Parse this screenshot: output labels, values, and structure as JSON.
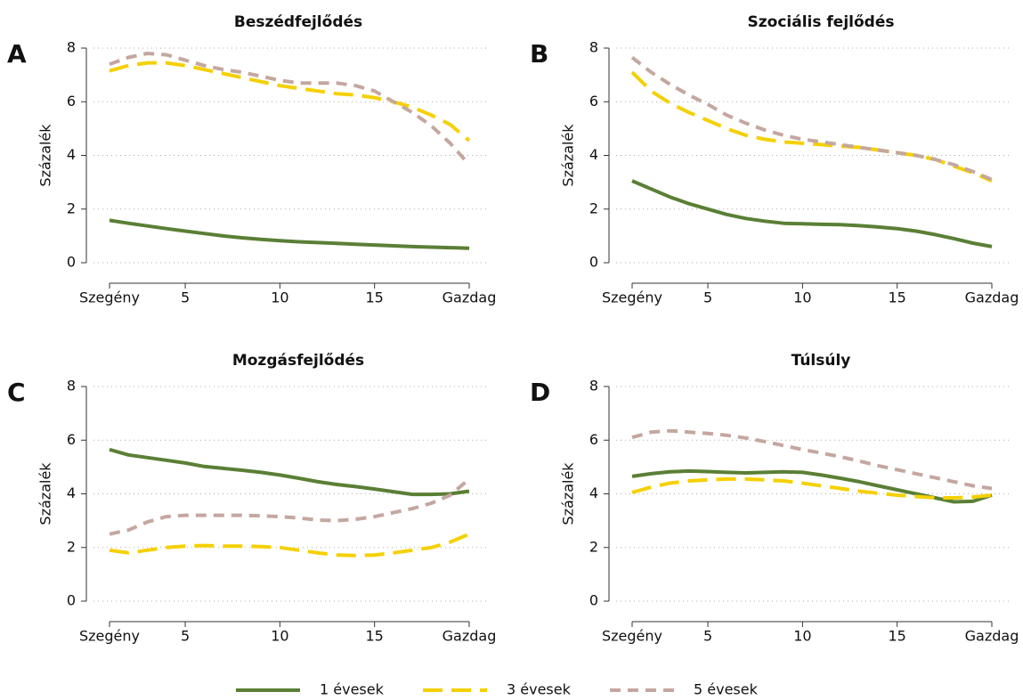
{
  "chart_data": [
    {
      "type": "line",
      "label": "A",
      "title": "Beszédfejlődés",
      "ylabel": "Százalék",
      "x": [
        1,
        2,
        3,
        4,
        5,
        6,
        7,
        8,
        9,
        10,
        11,
        12,
        13,
        14,
        15,
        16,
        17,
        18,
        19,
        20
      ],
      "xlim": [
        1,
        20
      ],
      "xticks": [
        {
          "value": 1,
          "label": "Szegény"
        },
        5,
        10,
        15,
        {
          "value": 20,
          "label": "Gazdag"
        }
      ],
      "ylim": [
        0,
        8
      ],
      "yticks": [
        0,
        2,
        4,
        6,
        8
      ],
      "grid": true,
      "series": [
        {
          "name": "1 évesek",
          "color": "#5a7f35",
          "values": [
            1.58,
            1.47,
            1.37,
            1.27,
            1.18,
            1.09,
            1.0,
            0.93,
            0.87,
            0.82,
            0.78,
            0.75,
            0.72,
            0.69,
            0.66,
            0.63,
            0.6,
            0.58,
            0.56,
            0.54
          ]
        },
        {
          "name": "3 évesek",
          "color": "#f5d000",
          "values": [
            7.15,
            7.35,
            7.45,
            7.45,
            7.35,
            7.2,
            7.05,
            6.9,
            6.75,
            6.6,
            6.5,
            6.4,
            6.3,
            6.25,
            6.15,
            6.0,
            5.8,
            5.5,
            5.15,
            4.55
          ]
        },
        {
          "name": "5 évesek",
          "color": "#c4a7a0",
          "values": [
            7.4,
            7.65,
            7.8,
            7.75,
            7.55,
            7.35,
            7.2,
            7.1,
            6.95,
            6.8,
            6.7,
            6.7,
            6.7,
            6.6,
            6.4,
            6.0,
            5.6,
            5.1,
            4.45,
            3.65
          ]
        }
      ]
    },
    {
      "type": "line",
      "label": "B",
      "title": "Szociális fejlődés",
      "ylabel": "Százalék",
      "x": [
        1,
        2,
        3,
        4,
        5,
        6,
        7,
        8,
        9,
        10,
        11,
        12,
        13,
        14,
        15,
        16,
        17,
        18,
        19,
        20
      ],
      "xlim": [
        1,
        20
      ],
      "xticks": [
        {
          "value": 1,
          "label": "Szegény"
        },
        5,
        10,
        15,
        {
          "value": 20,
          "label": "Gazdag"
        }
      ],
      "ylim": [
        0,
        8
      ],
      "yticks": [
        0,
        2,
        4,
        6,
        8
      ],
      "grid": true,
      "series": [
        {
          "name": "1 évesek",
          "color": "#5a7f35",
          "values": [
            3.05,
            2.75,
            2.45,
            2.2,
            2.0,
            1.8,
            1.65,
            1.55,
            1.47,
            1.45,
            1.43,
            1.42,
            1.38,
            1.33,
            1.27,
            1.18,
            1.05,
            0.9,
            0.73,
            0.6
          ]
        },
        {
          "name": "3 évesek",
          "color": "#f5d000",
          "values": [
            7.1,
            6.4,
            5.95,
            5.6,
            5.3,
            5.0,
            4.75,
            4.6,
            4.5,
            4.45,
            4.4,
            4.35,
            4.3,
            4.2,
            4.1,
            4.0,
            3.85,
            3.6,
            3.35,
            3.05
          ]
        },
        {
          "name": "5 évesek",
          "color": "#c4a7a0",
          "values": [
            7.65,
            7.1,
            6.65,
            6.25,
            5.9,
            5.5,
            5.2,
            4.95,
            4.75,
            4.6,
            4.5,
            4.4,
            4.3,
            4.2,
            4.1,
            4.0,
            3.85,
            3.65,
            3.4,
            3.1
          ]
        }
      ]
    },
    {
      "type": "line",
      "label": "C",
      "title": "Mozgásfejlődés",
      "ylabel": "Százalék",
      "x": [
        1,
        2,
        3,
        4,
        5,
        6,
        7,
        8,
        9,
        10,
        11,
        12,
        13,
        14,
        15,
        16,
        17,
        18,
        19,
        20
      ],
      "xlim": [
        1,
        20
      ],
      "xticks": [
        {
          "value": 1,
          "label": "Szegény"
        },
        5,
        10,
        15,
        {
          "value": 20,
          "label": "Gazdag"
        }
      ],
      "ylim": [
        0,
        8
      ],
      "yticks": [
        0,
        2,
        4,
        6,
        8
      ],
      "grid": true,
      "series": [
        {
          "name": "1 évesek",
          "color": "#5a7f35",
          "values": [
            5.65,
            5.45,
            5.35,
            5.25,
            5.15,
            5.02,
            4.95,
            4.88,
            4.8,
            4.7,
            4.58,
            4.45,
            4.35,
            4.27,
            4.18,
            4.08,
            3.98,
            3.98,
            4.0,
            4.1
          ]
        },
        {
          "name": "3 évesek",
          "color": "#f5d000",
          "values": [
            1.9,
            1.8,
            1.9,
            2.0,
            2.05,
            2.07,
            2.05,
            2.05,
            2.03,
            2.0,
            1.9,
            1.8,
            1.72,
            1.7,
            1.72,
            1.8,
            1.9,
            2.0,
            2.2,
            2.5
          ]
        },
        {
          "name": "5 évesek",
          "color": "#c4a7a0",
          "values": [
            2.5,
            2.65,
            2.95,
            3.15,
            3.2,
            3.2,
            3.2,
            3.2,
            3.18,
            3.15,
            3.1,
            3.02,
            3.0,
            3.05,
            3.15,
            3.3,
            3.45,
            3.65,
            3.95,
            4.55
          ]
        }
      ]
    },
    {
      "type": "line",
      "label": "D",
      "title": "Túlsúly",
      "ylabel": "Százalék",
      "x": [
        1,
        2,
        3,
        4,
        5,
        6,
        7,
        8,
        9,
        10,
        11,
        12,
        13,
        14,
        15,
        16,
        17,
        18,
        19,
        20
      ],
      "xlim": [
        1,
        20
      ],
      "xticks": [
        {
          "value": 1,
          "label": "Szegény"
        },
        5,
        10,
        15,
        {
          "value": 20,
          "label": "Gazdag"
        }
      ],
      "ylim": [
        0,
        8
      ],
      "yticks": [
        0,
        2,
        4,
        6,
        8
      ],
      "grid": true,
      "series": [
        {
          "name": "1 évesek",
          "color": "#5a7f35",
          "values": [
            4.65,
            4.75,
            4.82,
            4.85,
            4.83,
            4.8,
            4.78,
            4.8,
            4.82,
            4.8,
            4.7,
            4.58,
            4.45,
            4.3,
            4.15,
            4.0,
            3.85,
            3.7,
            3.72,
            3.95
          ]
        },
        {
          "name": "3 évesek",
          "color": "#f5d000",
          "values": [
            4.05,
            4.25,
            4.4,
            4.48,
            4.52,
            4.55,
            4.55,
            4.52,
            4.48,
            4.4,
            4.3,
            4.2,
            4.1,
            4.02,
            3.95,
            3.9,
            3.85,
            3.85,
            3.88,
            3.95
          ]
        },
        {
          "name": "5 évesek",
          "color": "#c4a7a0",
          "values": [
            6.1,
            6.3,
            6.35,
            6.3,
            6.25,
            6.18,
            6.08,
            5.95,
            5.8,
            5.65,
            5.52,
            5.38,
            5.22,
            5.05,
            4.9,
            4.75,
            4.6,
            4.45,
            4.3,
            4.2
          ]
        }
      ]
    }
  ]
}
